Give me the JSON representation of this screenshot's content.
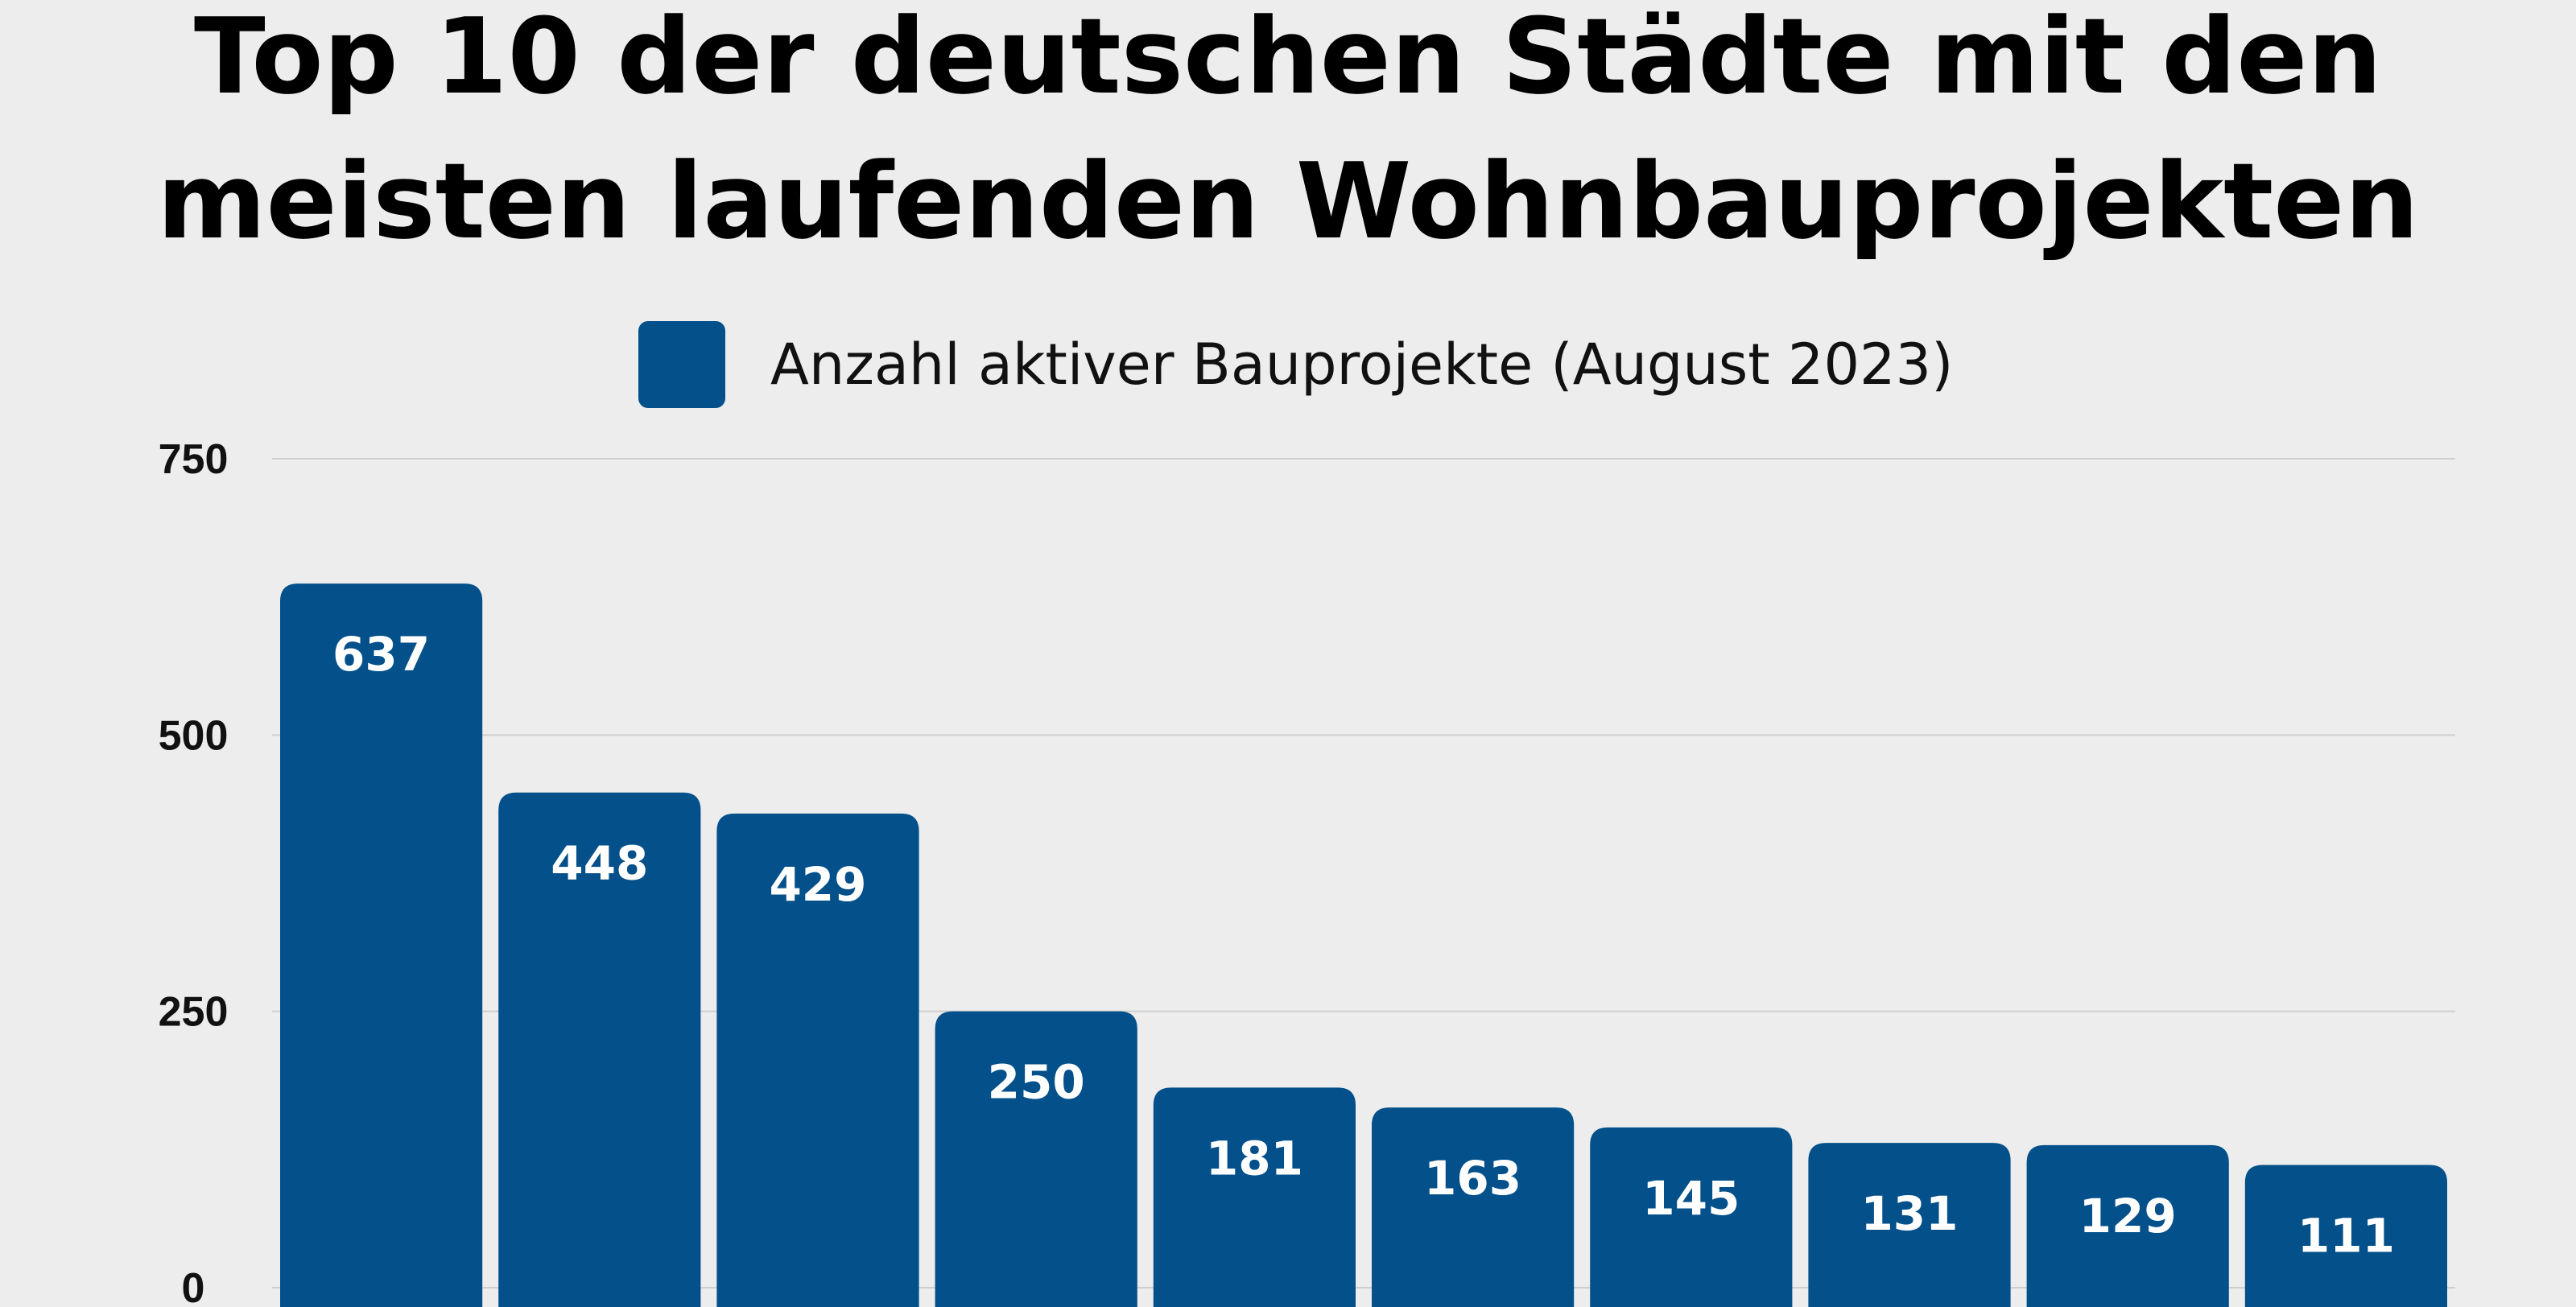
{
  "chart_data": {
    "type": "bar",
    "title": [
      "Top 10 der deutschen Städte mit den",
      "meisten laufenden Wohnbauprojekten"
    ],
    "legend": {
      "label": "Anzahl aktiver Bauprojekte (August 2023)",
      "placement": "top-center"
    },
    "series": [
      {
        "name": "Anzahl aktiver Bauprojekte (August 2023)",
        "values": [
          637,
          448,
          429,
          250,
          181,
          163,
          145,
          131,
          129,
          111
        ]
      }
    ],
    "data_labels": [
      "637",
      "448",
      "429",
      "250",
      "181",
      "163",
      "145",
      "131",
      "129",
      "111"
    ],
    "y_ticks": [
      0,
      250,
      500,
      750
    ],
    "ylim": [
      0,
      750
    ],
    "grid": true,
    "bar_color": "#03508a"
  },
  "colors": {
    "background": "#ededed",
    "bar": "#03508a",
    "bar_label": "#ffffff",
    "grid": "#cfcfcf",
    "logo": "#1a86d6"
  }
}
